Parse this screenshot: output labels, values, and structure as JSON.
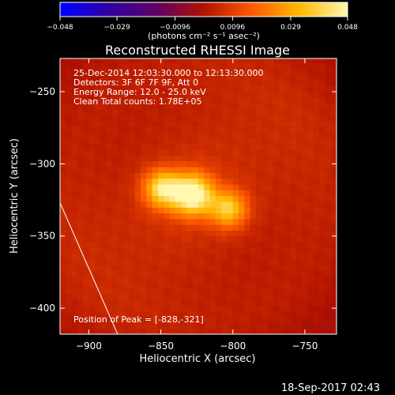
{
  "chart_data": {
    "type": "heatmap",
    "title": "Reconstructed RHESSI Image",
    "xlabel": "Heliocentric X (arcsec)",
    "ylabel": "Heliocentric Y (arcsec)",
    "xlim": [
      -920,
      -728
    ],
    "ylim": [
      -418,
      -227
    ],
    "x_ticks": [
      {
        "value": -900,
        "label": "−900"
      },
      {
        "value": -850,
        "label": "−850"
      },
      {
        "value": -800,
        "label": "−800"
      },
      {
        "value": -750,
        "label": "−750"
      }
    ],
    "y_ticks": [
      {
        "value": -250,
        "label": "−250"
      },
      {
        "value": -300,
        "label": "−300"
      },
      {
        "value": -350,
        "label": "−350"
      },
      {
        "value": -400,
        "label": "−400"
      }
    ],
    "colorbar": {
      "label": "(photons cm⁻² s⁻¹ asec⁻²)",
      "range": [
        -0.048,
        0.048
      ],
      "ticks": [
        {
          "value": -0.048,
          "label": "−0.048"
        },
        {
          "value": -0.029,
          "label": "−0.029"
        },
        {
          "value": -0.0096,
          "label": "−0.0096"
        },
        {
          "value": 0.0096,
          "label": "0.0096"
        },
        {
          "value": 0.029,
          "label": "0.029"
        },
        {
          "value": 0.048,
          "label": "0.048"
        }
      ]
    },
    "annotations": [
      "25-Dec-2014 12:03:30.000 to 12:13:30.000",
      "Detectors: 3F 6F 7F 9F, Att 0",
      "Energy Range: 12.0 - 25.0 keV",
      "Clean    Total counts: 1.78E+05"
    ],
    "peak_label": "Position of Peak = [-828,-321]",
    "peak": {
      "x": -828,
      "y": -321
    },
    "sources": [
      {
        "x": -828,
        "y": -321,
        "peak": 0.048
      },
      {
        "x": -849,
        "y": -317,
        "peak": 0.037
      },
      {
        "x": -803,
        "y": -331,
        "peak": 0.032
      }
    ],
    "limb_line": [
      {
        "x": -920,
        "y": -327
      },
      {
        "x": -880,
        "y": -418
      }
    ],
    "grid": false,
    "colormap": [
      "#0000ff",
      "#2f00a5",
      "#5f0068",
      "#b01200",
      "#ff5a00",
      "#ffb800",
      "#fff8b0"
    ]
  },
  "footer": {
    "timestamp": "18-Sep-2017 02:43"
  }
}
